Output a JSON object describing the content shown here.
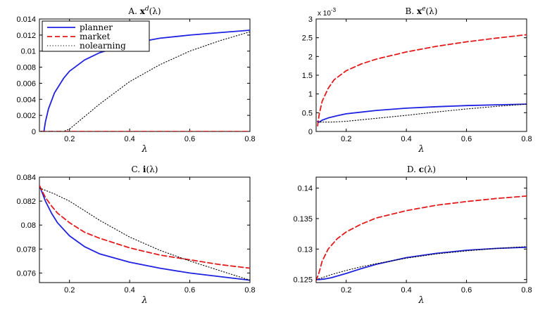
{
  "figure": {
    "x_symbol": "λ"
  },
  "colors": {
    "planner": "#1f22e0",
    "market": "#e31a1c",
    "nolearning": "#000000"
  },
  "chart_data": [
    {
      "type": "line",
      "title": "A. x^d(λ)",
      "title_prefix": "A.",
      "title_var": "x",
      "title_sup": "d",
      "title_arg": "(λ)",
      "xlabel": "λ",
      "xlim": [
        0.1,
        0.8
      ],
      "ylim": [
        0,
        0.014
      ],
      "xticks": [
        0.2,
        0.4,
        0.6,
        0.8
      ],
      "xtick_labels": [
        "0.2",
        "0.4",
        "0.6",
        "0.8"
      ],
      "yticks": [
        0,
        0.002,
        0.004,
        0.006,
        0.008,
        0.01,
        0.012,
        0.014
      ],
      "ytick_labels": [
        "0",
        "0.002",
        "0.004",
        "0.006",
        "0.008",
        "0.01",
        "0.012",
        "0.014"
      ],
      "legend": {
        "position": "top-left",
        "entries": [
          "planner",
          "market",
          "nolearning"
        ]
      },
      "series": [
        {
          "name": "planner",
          "x": [
            0.105,
            0.115,
            0.12,
            0.13,
            0.15,
            0.18,
            0.2,
            0.25,
            0.3,
            0.4,
            0.5,
            0.6,
            0.7,
            0.8
          ],
          "y": [
            0.0,
            0.0,
            0.0012,
            0.0028,
            0.0048,
            0.0066,
            0.0075,
            0.0089,
            0.0098,
            0.0109,
            0.0116,
            0.012,
            0.0123,
            0.0126
          ]
        },
        {
          "name": "market",
          "x": [
            0.105,
            0.8
          ],
          "y": [
            0.0,
            0.0
          ]
        },
        {
          "name": "nolearning",
          "x": [
            0.105,
            0.18,
            0.2,
            0.3,
            0.4,
            0.5,
            0.6,
            0.7,
            0.8
          ],
          "y": [
            0.0,
            0.0,
            0.0003,
            0.0034,
            0.0062,
            0.0083,
            0.01,
            0.0113,
            0.0124
          ]
        }
      ]
    },
    {
      "type": "line",
      "title": "B. x^e(λ)",
      "title_prefix": "B.",
      "title_var": "x",
      "title_sup": "e",
      "title_arg": "(λ)",
      "xlabel": "λ",
      "xlim": [
        0.1,
        0.8
      ],
      "ylim": [
        0,
        3
      ],
      "scale_label": "x 10",
      "scale_exp": "-3",
      "xticks": [
        0.2,
        0.4,
        0.6,
        0.8
      ],
      "xtick_labels": [
        "0.2",
        "0.4",
        "0.6",
        "0.8"
      ],
      "yticks": [
        0,
        0.5,
        1,
        1.5,
        2,
        2.5,
        3
      ],
      "ytick_labels": [
        "0",
        "0.5",
        "1",
        "1.5",
        "2",
        "2.5",
        "3"
      ],
      "series": [
        {
          "name": "planner",
          "x": [
            0.105,
            0.11,
            0.12,
            0.14,
            0.17,
            0.2,
            0.3,
            0.4,
            0.5,
            0.6,
            0.7,
            0.8
          ],
          "y": [
            0.27,
            0.25,
            0.3,
            0.36,
            0.42,
            0.47,
            0.56,
            0.62,
            0.66,
            0.69,
            0.71,
            0.73
          ]
        },
        {
          "name": "market",
          "x": [
            0.105,
            0.11,
            0.12,
            0.14,
            0.16,
            0.2,
            0.25,
            0.3,
            0.4,
            0.5,
            0.6,
            0.7,
            0.8
          ],
          "y": [
            0.15,
            0.45,
            0.8,
            1.15,
            1.38,
            1.62,
            1.8,
            1.93,
            2.12,
            2.27,
            2.39,
            2.49,
            2.58
          ]
        },
        {
          "name": "nolearning",
          "x": [
            0.105,
            0.12,
            0.15,
            0.2,
            0.3,
            0.4,
            0.5,
            0.6,
            0.7,
            0.8
          ],
          "y": [
            0.25,
            0.25,
            0.25,
            0.27,
            0.35,
            0.43,
            0.52,
            0.6,
            0.67,
            0.73
          ]
        }
      ]
    },
    {
      "type": "line",
      "title": "C. i(λ)",
      "title_prefix": "C.",
      "title_var": "i",
      "title_sup": "",
      "title_arg": "(λ)",
      "xlabel": "λ",
      "xlim": [
        0.1,
        0.8
      ],
      "ylim": [
        0.0752,
        0.084
      ],
      "xticks": [
        0.2,
        0.4,
        0.6,
        0.8
      ],
      "xtick_labels": [
        "0.2",
        "0.4",
        "0.6",
        "0.8"
      ],
      "yticks": [
        0.076,
        0.078,
        0.08,
        0.082,
        0.084
      ],
      "ytick_labels": [
        "0.076",
        "0.078",
        "0.08",
        "0.082",
        "0.084"
      ],
      "series": [
        {
          "name": "planner",
          "x": [
            0.1,
            0.12,
            0.14,
            0.16,
            0.2,
            0.25,
            0.3,
            0.4,
            0.5,
            0.6,
            0.7,
            0.8
          ],
          "y": [
            0.0833,
            0.082,
            0.081,
            0.0802,
            0.0791,
            0.0782,
            0.0776,
            0.0769,
            0.0764,
            0.076,
            0.0757,
            0.0754
          ]
        },
        {
          "name": "market",
          "x": [
            0.1,
            0.12,
            0.14,
            0.16,
            0.2,
            0.25,
            0.3,
            0.4,
            0.5,
            0.6,
            0.7,
            0.8
          ],
          "y": [
            0.0833,
            0.0823,
            0.0816,
            0.081,
            0.0802,
            0.0794,
            0.0789,
            0.0781,
            0.0775,
            0.0771,
            0.0767,
            0.0764
          ]
        },
        {
          "name": "nolearning",
          "x": [
            0.1,
            0.12,
            0.15,
            0.2,
            0.25,
            0.3,
            0.4,
            0.5,
            0.6,
            0.7,
            0.8
          ],
          "y": [
            0.0831,
            0.0829,
            0.0826,
            0.082,
            0.0812,
            0.0804,
            0.079,
            0.0779,
            0.077,
            0.0762,
            0.0754
          ]
        }
      ]
    },
    {
      "type": "line",
      "title": "D. c(λ)",
      "title_prefix": "D.",
      "title_var": "c",
      "title_sup": "",
      "title_arg": "(λ)",
      "xlabel": "λ",
      "xlim": [
        0.1,
        0.8
      ],
      "ylim": [
        0.1245,
        0.1418
      ],
      "xticks": [
        0.2,
        0.4,
        0.6,
        0.8
      ],
      "xtick_labels": [
        "0.2",
        "0.4",
        "0.6",
        "0.8"
      ],
      "yticks": [
        0.125,
        0.13,
        0.135,
        0.14
      ],
      "ytick_labels": [
        "0.125",
        "0.13",
        "0.135",
        "0.14"
      ],
      "series": [
        {
          "name": "planner",
          "x": [
            0.1,
            0.11,
            0.13,
            0.15,
            0.2,
            0.25,
            0.3,
            0.4,
            0.5,
            0.6,
            0.7,
            0.8
          ],
          "y": [
            0.125,
            0.125,
            0.1251,
            0.1253,
            0.126,
            0.1268,
            0.1275,
            0.1286,
            0.1293,
            0.1298,
            0.1301,
            0.1303
          ]
        },
        {
          "name": "market",
          "x": [
            0.1,
            0.11,
            0.12,
            0.14,
            0.17,
            0.2,
            0.25,
            0.3,
            0.4,
            0.5,
            0.6,
            0.7,
            0.8
          ],
          "y": [
            0.1248,
            0.1262,
            0.128,
            0.13,
            0.1317,
            0.1328,
            0.1341,
            0.1351,
            0.1363,
            0.1372,
            0.1378,
            0.1383,
            0.1387
          ]
        },
        {
          "name": "nolearning",
          "x": [
            0.1,
            0.12,
            0.15,
            0.2,
            0.25,
            0.3,
            0.4,
            0.5,
            0.6,
            0.7,
            0.8
          ],
          "y": [
            0.125,
            0.1253,
            0.1258,
            0.1265,
            0.1271,
            0.1276,
            0.1285,
            0.1292,
            0.1297,
            0.1301,
            0.1304
          ]
        }
      ]
    }
  ]
}
